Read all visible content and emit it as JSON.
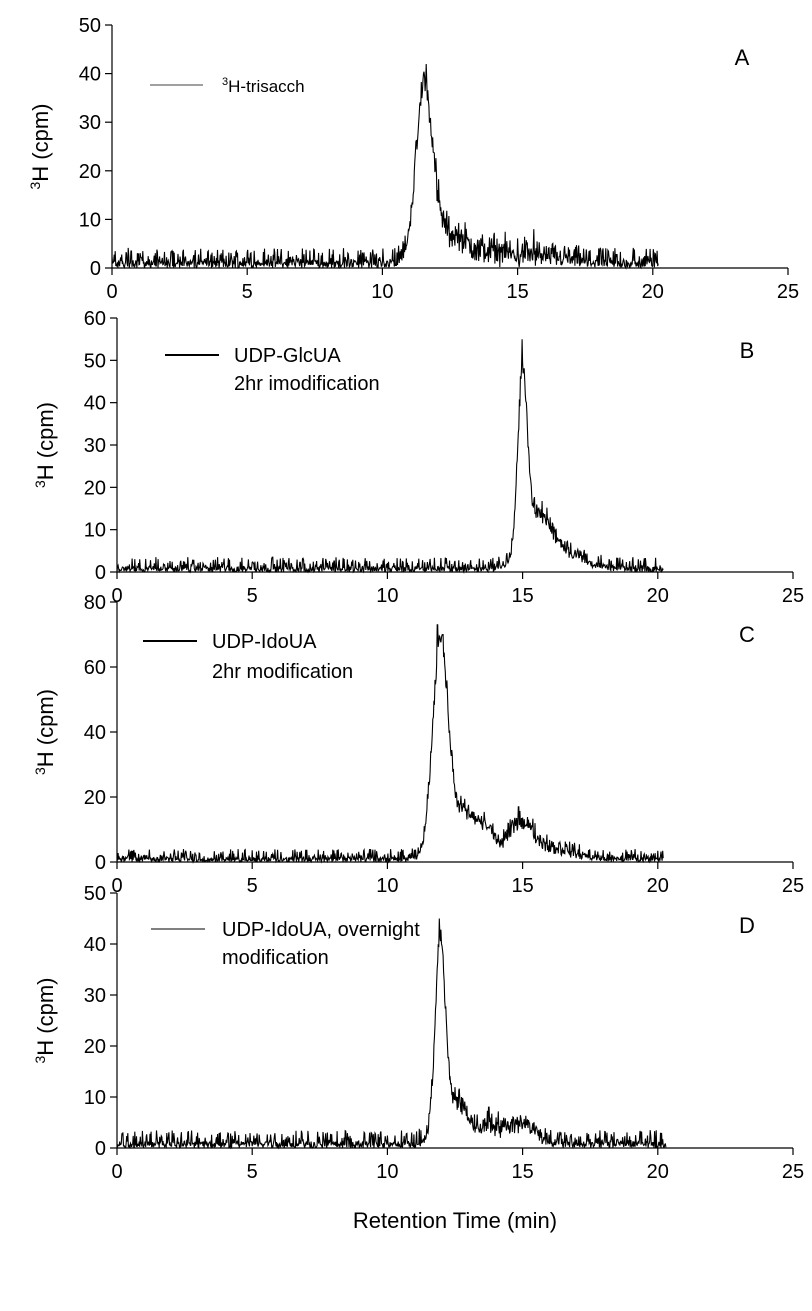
{
  "chart_data": [
    {
      "type": "line",
      "panel_label": "A",
      "ylabel_sup": "3",
      "ylabel_main": "H (cpm)",
      "ylim": [
        0,
        50
      ],
      "yticks": [
        0,
        10,
        20,
        30,
        40,
        50
      ],
      "xlim": [
        0,
        25
      ],
      "xticks": [
        0,
        5,
        10,
        15,
        20,
        25
      ],
      "legend": {
        "sup": "3",
        "main": "H-trisacch",
        "line2": ""
      },
      "series": [
        {
          "x_range": [
            0,
            20.2
          ],
          "noise": 2.6,
          "peak_extra_noise": 4,
          "peaks": [
            [
              11.55,
              34,
              0.3
            ],
            [
              12.3,
              5,
              0.7
            ],
            [
              14.5,
              1.5,
              1.5
            ]
          ],
          "spikes": [
            [
              11.52,
              40
            ],
            [
              11.75,
              30
            ],
            [
              15.6,
              8
            ]
          ]
        }
      ]
    },
    {
      "type": "line",
      "panel_label": "B",
      "ylabel_sup": "3",
      "ylabel_main": "H (cpm)",
      "ylim": [
        0,
        60
      ],
      "yticks": [
        0,
        10,
        20,
        30,
        40,
        50,
        60
      ],
      "xlim": [
        0,
        25
      ],
      "xticks": [
        0,
        5,
        10,
        15,
        20,
        25
      ],
      "legend": {
        "sup": "",
        "main": "UDP-GlcUA",
        "line2": "2hr imodification"
      },
      "series": [
        {
          "x_range": [
            0,
            20.2
          ],
          "noise": 2.2,
          "peak_extra_noise": 3,
          "peaks": [
            [
              15.0,
              40,
              0.17
            ],
            [
              15.5,
              10,
              0.5
            ],
            [
              16.3,
              4,
              0.8
            ]
          ],
          "spikes": [
            [
              14.98,
              55
            ],
            [
              15.05,
              48
            ]
          ]
        }
      ]
    },
    {
      "type": "line",
      "panel_label": "C",
      "ylabel_sup": "3",
      "ylabel_main": "H (cpm)",
      "ylim": [
        0,
        80
      ],
      "yticks": [
        0,
        20,
        40,
        60,
        80
      ],
      "xlim": [
        0,
        25
      ],
      "xticks": [
        0,
        5,
        10,
        15,
        20,
        25
      ],
      "legend": {
        "sup": "",
        "main": "UDP-IdoUA",
        "line2": "2hr modification"
      },
      "series": [
        {
          "x_range": [
            0,
            20.2
          ],
          "noise": 2.5,
          "peak_extra_noise": 4,
          "peaks": [
            [
              11.95,
              62,
              0.28
            ],
            [
              12.8,
              14,
              0.6
            ],
            [
              13.7,
              5,
              0.25
            ],
            [
              14.9,
              10,
              0.45
            ],
            [
              16.0,
              3,
              0.8
            ]
          ],
          "spikes": [
            [
              11.85,
              73
            ],
            [
              12.05,
              70
            ],
            [
              14.85,
              17
            ]
          ]
        }
      ]
    },
    {
      "type": "line",
      "panel_label": "D",
      "ylabel_sup": "3",
      "ylabel_main": "H (cpm)",
      "ylim": [
        0,
        50
      ],
      "yticks": [
        0,
        10,
        20,
        30,
        40,
        50
      ],
      "xlim": [
        0,
        25
      ],
      "xticks": [
        0,
        5,
        10,
        15,
        20,
        25
      ],
      "xlabel": "Retention Time (min)",
      "legend": {
        "sup": "",
        "main": "UDP-IdoUA, overnight",
        "line2": "modification"
      },
      "series": [
        {
          "x_range": [
            0,
            20.3
          ],
          "noise": 2.2,
          "peak_extra_noise": 3,
          "peaks": [
            [
              11.95,
              36,
              0.18
            ],
            [
              12.5,
              8,
              0.5
            ],
            [
              13.8,
              3,
              0.3
            ],
            [
              14.9,
              4,
              0.5
            ]
          ],
          "spikes": [
            [
              11.92,
              45
            ],
            [
              12.0,
              40
            ],
            [
              13.75,
              8
            ]
          ]
        }
      ]
    }
  ]
}
